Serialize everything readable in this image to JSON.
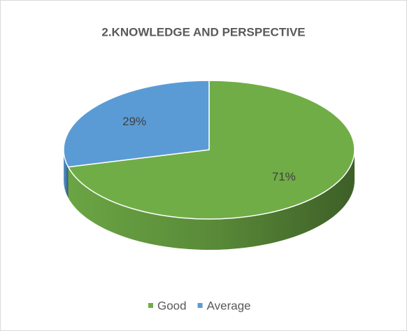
{
  "chart_data": {
    "type": "pie",
    "title": "2.KNOWLEDGE AND PERSPECTIVE",
    "categories": [
      "Good",
      "Average"
    ],
    "values": [
      71,
      29
    ],
    "value_labels": [
      "71%",
      "29%"
    ],
    "colors": [
      "#70ad47",
      "#5b9bd5"
    ],
    "legend": "bottom"
  }
}
